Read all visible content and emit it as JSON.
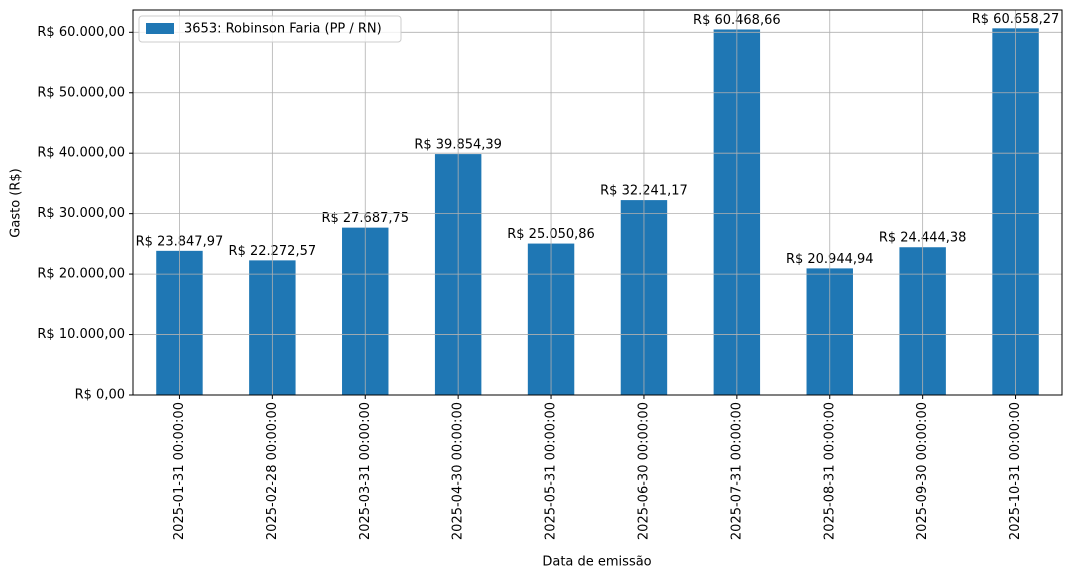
{
  "chart_data": {
    "type": "bar",
    "categories": [
      "2025-01-31 00:00:00",
      "2025-02-28 00:00:00",
      "2025-03-31 00:00:00",
      "2025-04-30 00:00:00",
      "2025-05-31 00:00:00",
      "2025-06-30 00:00:00",
      "2025-07-31 00:00:00",
      "2025-08-31 00:00:00",
      "2025-09-30 00:00:00",
      "2025-10-31 00:00:00"
    ],
    "series": [
      {
        "name": "3653: Robinson Faria (PP / RN)",
        "color": "#1f77b4",
        "values": [
          23847.97,
          22272.57,
          27687.75,
          39854.39,
          25050.86,
          32241.17,
          60468.66,
          20944.94,
          24444.38,
          60658.27
        ],
        "value_labels": [
          "R$ 23.847,97",
          "R$ 22.272,57",
          "R$ 27.687,75",
          "R$ 39.854,39",
          "R$ 25.050,86",
          "R$ 32.241,17",
          "R$ 60.468,66",
          "R$ 20.944,94",
          "R$ 24.444,38",
          "R$ 60.658,27"
        ]
      }
    ],
    "xlabel": "Data de emissão",
    "ylabel": "Gasto (R$)",
    "ylim": [
      0,
      63691
    ],
    "yticks": [
      {
        "value": 0,
        "label": "R$ 0,00"
      },
      {
        "value": 10000,
        "label": "R$ 10.000,00"
      },
      {
        "value": 20000,
        "label": "R$ 20.000,00"
      },
      {
        "value": 30000,
        "label": "R$ 30.000,00"
      },
      {
        "value": 40000,
        "label": "R$ 40.000,00"
      },
      {
        "value": 50000,
        "label": "R$ 50.000,00"
      },
      {
        "value": 60000,
        "label": "R$ 60.000,00"
      }
    ],
    "grid": true,
    "legend": "upper left"
  }
}
